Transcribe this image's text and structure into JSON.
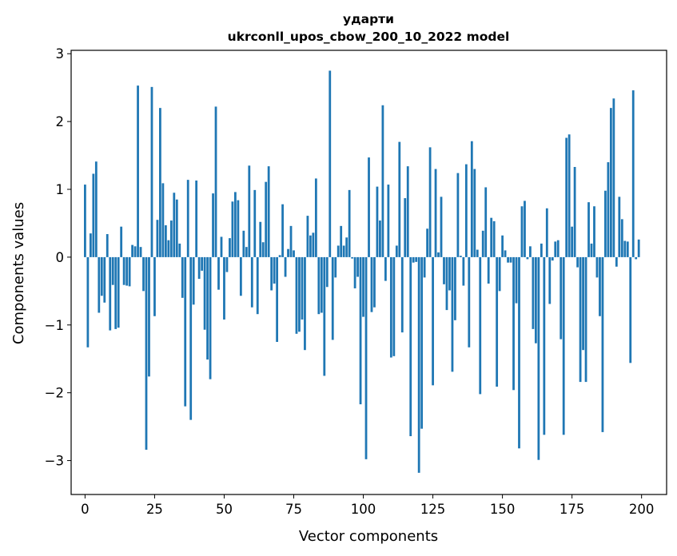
{
  "chart_data": {
    "type": "bar",
    "title": "ударти",
    "subtitle": "ukrconll_upos_cbow_200_10_2022 model",
    "xlabel": "Vector components",
    "ylabel": "Components values",
    "xlim": [
      -5,
      209
    ],
    "ylim": [
      -3.5,
      3.05
    ],
    "xticks": [
      0,
      25,
      50,
      75,
      100,
      125,
      150,
      175,
      200
    ],
    "yticks": [
      -3,
      -2,
      -1,
      0,
      1,
      2,
      3
    ],
    "xtick_labels": [
      "0",
      "25",
      "50",
      "75",
      "100",
      "125",
      "150",
      "175",
      "200"
    ],
    "ytick_labels": [
      "−3",
      "−2",
      "−1",
      "0",
      "1",
      "2",
      "3"
    ],
    "bar_color": "#1f77b4",
    "x": [
      0,
      1,
      2,
      3,
      4,
      5,
      6,
      7,
      8,
      9,
      10,
      11,
      12,
      13,
      14,
      15,
      16,
      17,
      18,
      19,
      20,
      21,
      22,
      23,
      24,
      25,
      26,
      27,
      28,
      29,
      30,
      31,
      32,
      33,
      34,
      35,
      36,
      37,
      38,
      39,
      40,
      41,
      42,
      43,
      44,
      45,
      46,
      47,
      48,
      49,
      50,
      51,
      52,
      53,
      54,
      55,
      56,
      57,
      58,
      59,
      60,
      61,
      62,
      63,
      64,
      65,
      66,
      67,
      68,
      69,
      70,
      71,
      72,
      73,
      74,
      75,
      76,
      77,
      78,
      79,
      80,
      81,
      82,
      83,
      84,
      85,
      86,
      87,
      88,
      89,
      90,
      91,
      92,
      93,
      94,
      95,
      96,
      97,
      98,
      99,
      100,
      101,
      102,
      103,
      104,
      105,
      106,
      107,
      108,
      109,
      110,
      111,
      112,
      113,
      114,
      115,
      116,
      117,
      118,
      119,
      120,
      121,
      122,
      123,
      124,
      125,
      126,
      127,
      128,
      129,
      130,
      131,
      132,
      133,
      134,
      135,
      136,
      137,
      138,
      139,
      140,
      141,
      142,
      143,
      144,
      145,
      146,
      147,
      148,
      149,
      150,
      151,
      152,
      153,
      154,
      155,
      156,
      157,
      158,
      159,
      160,
      161,
      162,
      163,
      164,
      165,
      166,
      167,
      168,
      169,
      170,
      171,
      172,
      173,
      174,
      175,
      176,
      177,
      178,
      179,
      180,
      181,
      182,
      183,
      184,
      185,
      186,
      187,
      188,
      189,
      190,
      191,
      192,
      193,
      194,
      195,
      196,
      197,
      198,
      199
    ],
    "values": [
      1.07,
      -1.33,
      0.35,
      1.23,
      1.41,
      -0.82,
      -0.57,
      -0.67,
      0.34,
      -1.08,
      -0.41,
      -1.06,
      -1.04,
      0.45,
      -0.41,
      -0.42,
      -0.43,
      0.18,
      0.16,
      2.53,
      0.15,
      -0.5,
      -2.84,
      -1.76,
      2.51,
      -0.87,
      0.55,
      2.2,
      1.09,
      0.47,
      0.25,
      0.54,
      0.95,
      0.85,
      0.2,
      -0.6,
      -2.2,
      1.14,
      -2.4,
      -0.7,
      1.13,
      -0.32,
      -0.2,
      -1.07,
      -1.51,
      -1.8,
      0.94,
      2.22,
      -0.48,
      0.3,
      -0.92,
      -0.22,
      0.28,
      0.82,
      0.96,
      0.84,
      -0.57,
      0.39,
      0.15,
      1.35,
      -0.74,
      0.99,
      -0.84,
      0.52,
      0.22,
      1.11,
      1.34,
      -0.49,
      -0.39,
      -1.25,
      0.03,
      0.78,
      -0.29,
      0.12,
      0.46,
      0.1,
      -1.13,
      -1.1,
      -0.92,
      -1.37,
      0.61,
      0.32,
      0.36,
      1.16,
      -0.84,
      -0.82,
      -1.75,
      -0.44,
      2.75,
      -1.22,
      -0.3,
      0.17,
      0.46,
      0.17,
      0.29,
      0.99,
      -0.02,
      -0.46,
      -0.29,
      -2.17,
      -0.88,
      -2.98,
      1.47,
      -0.81,
      -0.74,
      1.04,
      0.54,
      2.24,
      -0.35,
      1.07,
      -1.48,
      -1.46,
      0.17,
      1.7,
      -1.11,
      0.87,
      1.34,
      -2.64,
      -0.08,
      -0.07,
      -3.18,
      -2.53,
      -0.3,
      0.42,
      1.62,
      -1.89,
      1.3,
      0.07,
      0.89,
      -0.4,
      -0.78,
      -0.49,
      -1.69,
      -0.93,
      1.24,
      0.02,
      -0.42,
      1.37,
      -1.33,
      1.71,
      1.3,
      0.11,
      -2.02,
      0.39,
      1.03,
      -0.39,
      0.58,
      0.53,
      -1.91,
      -0.5,
      0.32,
      0.1,
      -0.08,
      -0.08,
      -1.96,
      -0.68,
      -2.82,
      0.75,
      0.83,
      -0.03,
      0.16,
      -1.06,
      -1.27,
      -2.99,
      0.2,
      -2.62,
      0.72,
      -0.69,
      -0.05,
      0.23,
      0.25,
      -1.21,
      -2.62,
      1.76,
      1.81,
      0.45,
      1.33,
      -0.15,
      -1.84,
      -1.37,
      -1.84,
      0.81,
      0.2,
      0.75,
      -0.3,
      -0.87,
      -2.58,
      0.98,
      1.4,
      2.2,
      2.34,
      -0.14,
      0.89,
      0.56,
      0.24,
      0.23,
      -1.56,
      2.46,
      -0.03,
      0.26
    ]
  }
}
